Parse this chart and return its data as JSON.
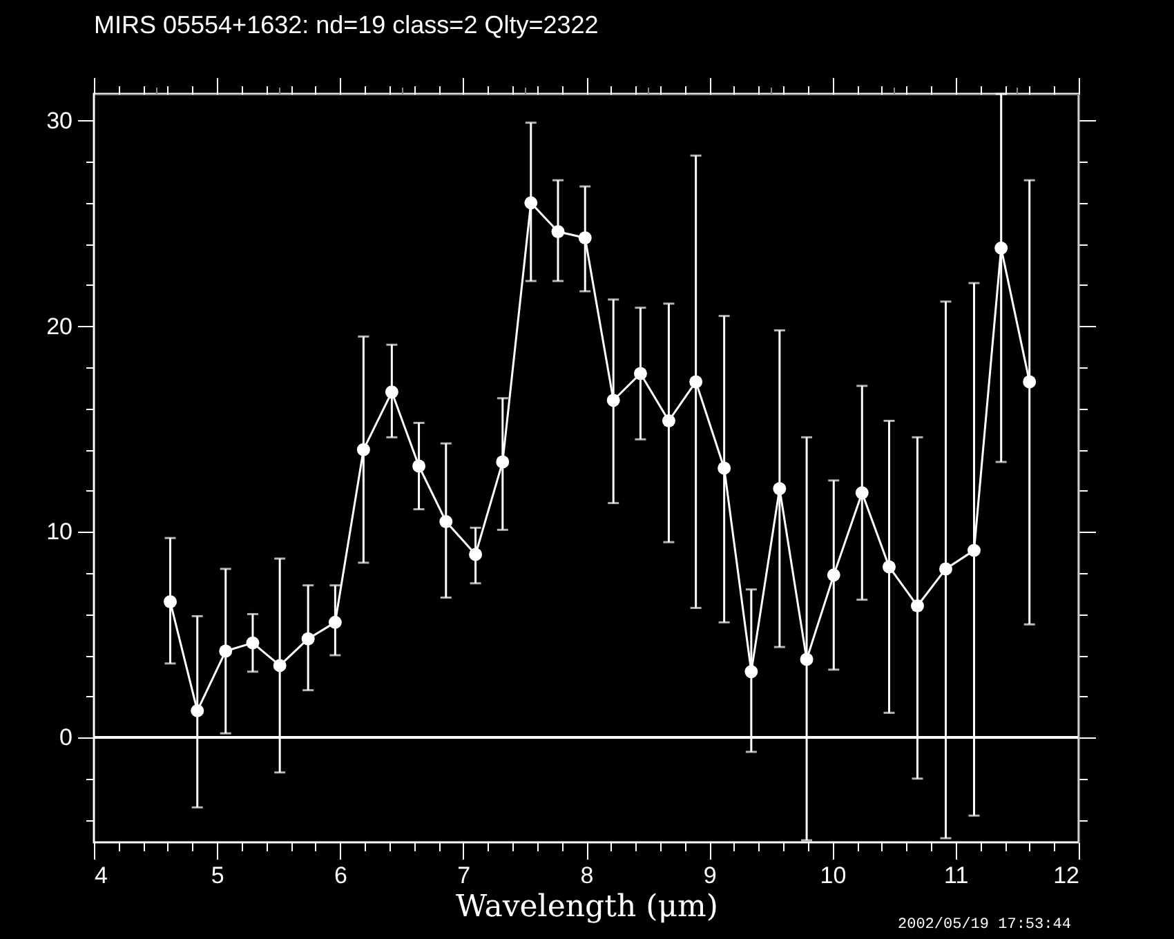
{
  "chart_data": {
    "type": "line",
    "title": "MIRS 05554+1632:    nd=19   class=2   Qlty=2322",
    "xlabel": "Wavelength (μm)",
    "x": [
      4.62,
      4.84,
      5.07,
      5.29,
      5.51,
      5.74,
      5.96,
      6.19,
      6.42,
      6.64,
      6.86,
      7.1,
      7.32,
      7.55,
      7.77,
      7.99,
      8.22,
      8.44,
      8.67,
      8.89,
      9.12,
      9.34,
      9.57,
      9.79,
      10.01,
      10.24,
      10.46,
      10.69,
      10.92,
      11.15,
      11.37,
      11.6
    ],
    "series": [
      {
        "color": "#ffffff",
        "values": [
          6.6,
          1.3,
          4.2,
          4.6,
          3.5,
          4.8,
          5.6,
          14.0,
          16.8,
          13.2,
          10.5,
          8.9,
          13.4,
          26.0,
          24.6,
          24.3,
          16.4,
          17.7,
          15.4,
          17.3,
          13.1,
          3.2,
          12.1,
          3.8,
          7.9,
          11.9,
          8.3,
          6.4,
          8.2,
          9.1,
          23.8,
          17.3
        ],
        "errors": [
          [
            3.6,
            9.7
          ],
          [
            -3.4,
            5.9
          ],
          [
            0.2,
            8.2
          ],
          [
            3.2,
            6.0
          ],
          [
            -1.7,
            8.7
          ],
          [
            2.3,
            7.4
          ],
          [
            4.0,
            7.4
          ],
          [
            8.5,
            19.5
          ],
          [
            14.6,
            19.1
          ],
          [
            11.1,
            15.3
          ],
          [
            6.8,
            14.3
          ],
          [
            7.5,
            10.2
          ],
          [
            10.1,
            16.5
          ],
          [
            22.2,
            29.9
          ],
          [
            22.2,
            27.1
          ],
          [
            21.7,
            26.8
          ],
          [
            11.4,
            21.3
          ],
          [
            14.5,
            20.9
          ],
          [
            9.5,
            21.1
          ],
          [
            6.3,
            28.3
          ],
          [
            5.6,
            20.5
          ],
          [
            -0.7,
            7.2
          ],
          [
            4.4,
            19.8
          ],
          [
            -5.0,
            14.6
          ],
          [
            3.3,
            12.5
          ],
          [
            6.7,
            17.1
          ],
          [
            1.2,
            15.4
          ],
          [
            -2.0,
            14.6
          ],
          [
            -4.9,
            21.2
          ],
          [
            -3.8,
            22.1
          ],
          [
            13.4,
            31.3
          ],
          [
            5.5,
            27.1
          ]
        ]
      }
    ],
    "xlim": [
      4,
      12
    ],
    "ylim": [
      -5.1,
      31.3
    ],
    "xticks": [
      4,
      {
        "value": 4.2,
        "label": null
      },
      {
        "value": 4.4,
        "label": null
      },
      {
        "value": 4.6,
        "label": null
      },
      {
        "value": 4.8,
        "label": null
      },
      5,
      {
        "value": 5.2,
        "label": null
      },
      {
        "value": 5.4,
        "label": null
      },
      {
        "value": 5.6,
        "label": null
      },
      {
        "value": 5.8,
        "label": null
      },
      6,
      {
        "value": 6.2,
        "label": null
      },
      {
        "value": 6.4,
        "label": null
      },
      {
        "value": 6.6,
        "label": null
      },
      {
        "value": 6.8,
        "label": null
      },
      7,
      {
        "value": 7.2,
        "label": null
      },
      {
        "value": 7.4,
        "label": null
      },
      {
        "value": 7.6,
        "label": null
      },
      {
        "value": 7.8,
        "label": null
      },
      8,
      {
        "value": 8.2,
        "label": null
      },
      {
        "value": 8.4,
        "label": null
      },
      {
        "value": 8.6,
        "label": null
      },
      {
        "value": 8.8,
        "label": null
      },
      9,
      {
        "value": 9.2,
        "label": null
      },
      {
        "value": 9.4,
        "label": null
      },
      {
        "value": 9.6,
        "label": null
      },
      {
        "value": 9.8,
        "label": null
      },
      10,
      {
        "value": 10.2,
        "label": null
      },
      {
        "value": 10.4,
        "label": null
      },
      {
        "value": 10.6,
        "label": null
      },
      {
        "value": 10.8,
        "label": null
      },
      11,
      {
        "value": 11.2,
        "label": null
      },
      {
        "value": 11.4,
        "label": null
      },
      {
        "value": 11.6,
        "label": null
      },
      {
        "value": 11.8,
        "label": null
      },
      12
    ],
    "yticks": [
      {
        "value": -4,
        "label": null
      },
      {
        "value": -2,
        "label": null
      },
      0,
      {
        "value": 2,
        "label": null
      },
      {
        "value": 4,
        "label": null
      },
      {
        "value": 6,
        "label": null
      },
      {
        "value": 8,
        "label": null
      },
      10,
      {
        "value": 12,
        "label": null
      },
      {
        "value": 14,
        "label": null
      },
      {
        "value": 16,
        "label": null
      },
      {
        "value": 18,
        "label": null
      },
      20,
      {
        "value": 22,
        "label": null
      },
      {
        "value": 24,
        "label": null
      },
      {
        "value": 26,
        "label": null
      },
      {
        "value": 28,
        "label": null
      },
      30
    ],
    "ref_lines": [
      {
        "axis": "y",
        "value": 0,
        "color": "#ffffff"
      }
    ],
    "marker": "circle",
    "line_style": "solid",
    "grid": false,
    "legend": false,
    "annotations": [
      "2002/05/19 17:53:44"
    ]
  }
}
